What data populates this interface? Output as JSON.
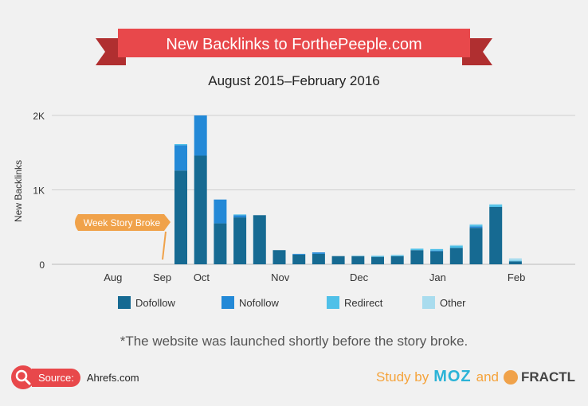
{
  "subtitle": "August 2015–February 2016",
  "footnote": "*The website was launched shortly before the story broke.",
  "source": {
    "label": "Source:",
    "site": "Ahrefs.com"
  },
  "credits": {
    "study": "Study by",
    "moz": "MOZ",
    "and": "and",
    "fractl": "FRACTL"
  },
  "colors": {
    "banner": "#e8484b",
    "banner_dark": "#b02f30",
    "dofollow": "#166a92",
    "nofollow": "#2389d7",
    "redirect": "#4fc0e8",
    "other": "#a9dcee",
    "callout": "#f0a24a",
    "grid": "#cfcfcf",
    "text": "#333333"
  },
  "chart_data": {
    "type": "bar",
    "stacked": true,
    "title": "New Backlinks to ForthePeeple.com",
    "ylabel": "New Backlinks",
    "ylim": [
      0,
      2000
    ],
    "yticks": [
      0,
      1000,
      2000
    ],
    "ytick_labels": [
      "0",
      "1K",
      "2K"
    ],
    "month_labels": [
      {
        "label": "Aug",
        "pos": -2.5
      },
      {
        "label": "Sep",
        "pos": 0
      },
      {
        "label": "Oct",
        "pos": 2
      },
      {
        "label": "Nov",
        "pos": 6
      },
      {
        "label": "Dec",
        "pos": 10
      },
      {
        "label": "Jan",
        "pos": 14
      },
      {
        "label": "Feb",
        "pos": 18
      }
    ],
    "bar_count": 18,
    "series": [
      {
        "name": "Dofollow",
        "values": [
          1260,
          1460,
          550,
          630,
          660,
          190,
          130,
          140,
          110,
          110,
          100,
          110,
          190,
          175,
          220,
          490,
          770,
          40
        ]
      },
      {
        "name": "Nofollow",
        "values": [
          340,
          540,
          320,
          30,
          0,
          0,
          10,
          20,
          0,
          0,
          0,
          0,
          0,
          10,
          0,
          20,
          0,
          0
        ]
      },
      {
        "name": "Redirect",
        "values": [
          15,
          0,
          0,
          10,
          0,
          0,
          0,
          0,
          0,
          0,
          10,
          10,
          20,
          20,
          30,
          20,
          30,
          10
        ]
      },
      {
        "name": "Other",
        "values": [
          0,
          0,
          0,
          0,
          0,
          0,
          0,
          0,
          0,
          10,
          10,
          10,
          0,
          0,
          10,
          10,
          10,
          30
        ]
      }
    ],
    "annotation": "Week Story Broke"
  }
}
